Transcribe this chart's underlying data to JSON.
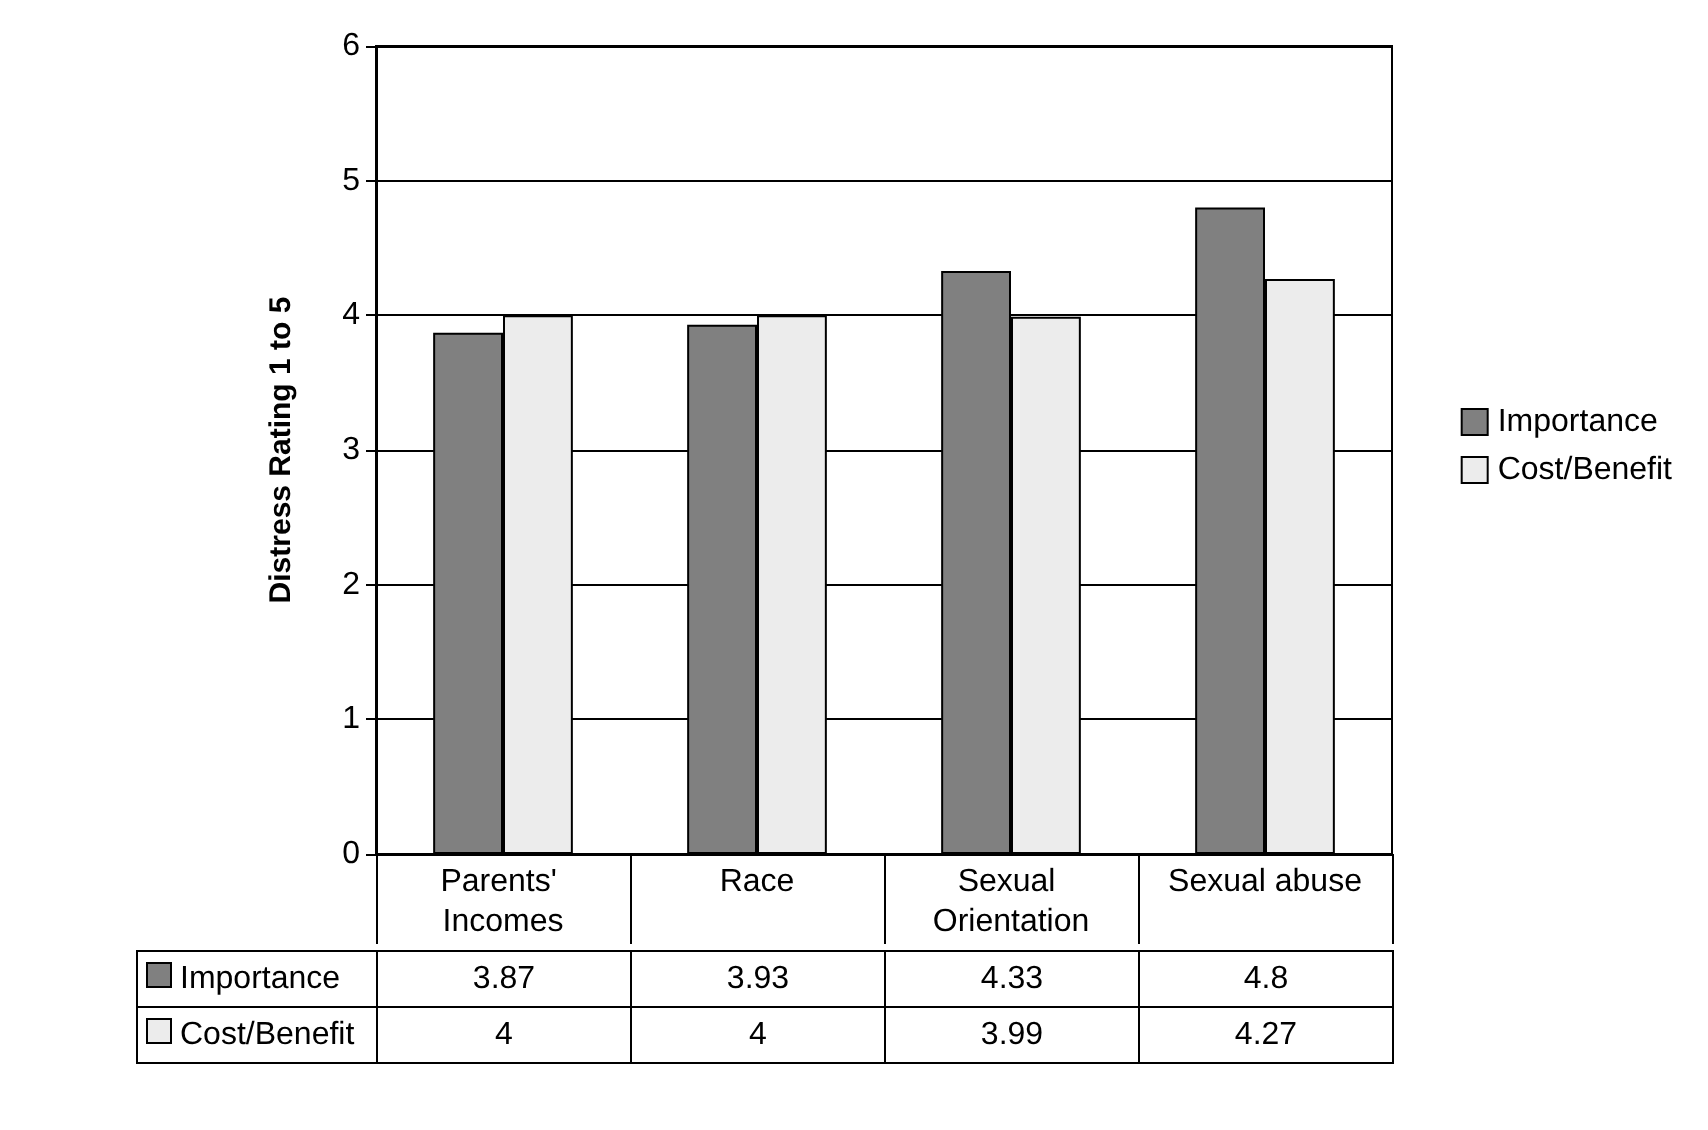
{
  "chart_data": {
    "type": "bar",
    "ylabel": "Distress Rating 1 to 5",
    "categories": [
      "Parents' Incomes",
      "Race",
      "Sexual Orientation",
      "Sexual abuse"
    ],
    "series": [
      {
        "name": "Importance",
        "color": "#808080",
        "values": [
          3.87,
          3.93,
          4.33,
          4.8
        ]
      },
      {
        "name": "Cost/Benefit",
        "color": "#ececec",
        "values": [
          4,
          4,
          3.99,
          4.27
        ]
      }
    ],
    "ylim": [
      0,
      6
    ],
    "yticks": [
      0,
      1,
      2,
      3,
      4,
      5,
      6
    ],
    "grid": "y",
    "legend": "right",
    "data_labels": true
  }
}
